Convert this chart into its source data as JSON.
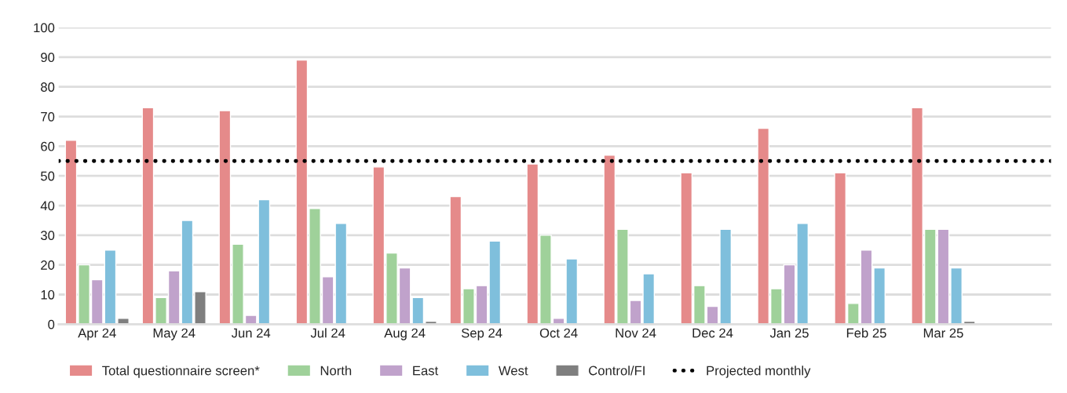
{
  "chart_data": {
    "type": "bar",
    "categories": [
      "Apr 24",
      "May 24",
      "Jun 24",
      "Jul 24",
      "Aug 24",
      "Sep 24",
      "Oct 24",
      "Nov 24",
      "Dec 24",
      "Jan 25",
      "Feb 25",
      "Mar 25"
    ],
    "series": [
      {
        "name": "Total questionnaire screen*",
        "color": "#e58a8a",
        "values": [
          62,
          73,
          72,
          89,
          53,
          43,
          54,
          57,
          51,
          66,
          51,
          73
        ]
      },
      {
        "name": "North",
        "color": "#9fd19a",
        "values": [
          20,
          9,
          27,
          39,
          24,
          12,
          30,
          32,
          13,
          12,
          7,
          32
        ]
      },
      {
        "name": "East",
        "color": "#c0a2cb",
        "values": [
          15,
          18,
          3,
          16,
          19,
          13,
          2,
          8,
          6,
          20,
          25,
          32
        ]
      },
      {
        "name": "West",
        "color": "#7fbfdc",
        "values": [
          25,
          35,
          42,
          34,
          9,
          28,
          22,
          17,
          32,
          34,
          19,
          19
        ]
      },
      {
        "name": "Control/FI",
        "color": "#7f7f7f",
        "values": [
          2,
          11,
          null,
          null,
          1,
          null,
          null,
          null,
          null,
          null,
          null,
          1
        ]
      }
    ],
    "ylim": [
      0,
      100
    ],
    "yticks": [
      0,
      10,
      20,
      30,
      40,
      50,
      60,
      70,
      80,
      90,
      100
    ],
    "ref_lines": [
      {
        "axis": "y",
        "value": 55,
        "label": "Projected monthly",
        "color": "#000000",
        "line_style": "dotted"
      }
    ],
    "grid": "y",
    "legend": "bottom"
  }
}
